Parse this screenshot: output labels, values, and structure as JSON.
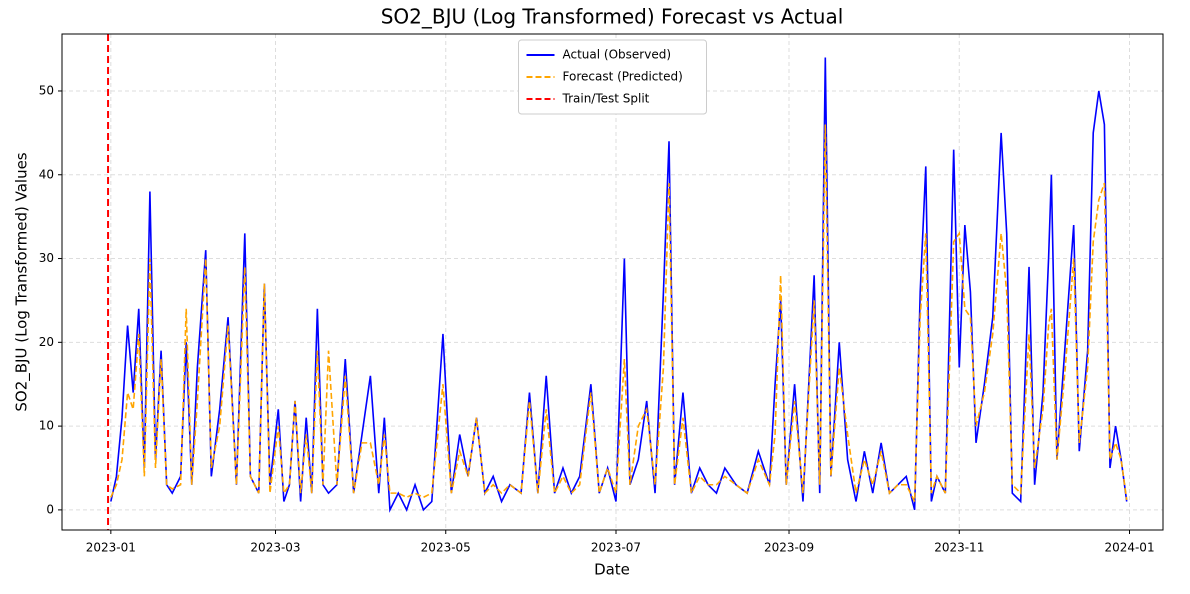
{
  "chart_data": {
    "type": "line",
    "title": "SO2_BJU (Log Transformed) Forecast vs Actual",
    "xlabel": "Date",
    "ylabel": "SO2_BJU (Log Transformed) Values",
    "x": [
      0,
      2,
      4,
      6,
      8,
      10,
      12,
      14,
      16,
      18,
      20,
      22,
      25,
      27,
      29,
      31,
      34,
      36,
      39,
      42,
      45,
      48,
      50,
      53,
      55,
      57,
      60,
      62,
      64,
      66,
      68,
      70,
      72,
      74,
      76,
      78,
      81,
      84,
      87,
      90,
      93,
      96,
      98,
      100,
      103,
      106,
      109,
      112,
      115,
      119,
      122,
      125,
      128,
      131,
      134,
      137,
      140,
      143,
      147,
      150,
      153,
      156,
      159,
      162,
      165,
      168,
      172,
      175,
      178,
      181,
      184,
      186,
      189,
      192,
      195,
      198,
      200,
      202,
      205,
      208,
      211,
      214,
      217,
      220,
      224,
      228,
      232,
      236,
      238,
      240,
      242,
      245,
      248,
      252,
      254,
      256,
      258,
      261,
      264,
      267,
      270,
      273,
      276,
      279,
      282,
      285,
      288,
      290,
      292,
      294,
      296,
      299,
      302,
      304,
      306,
      308,
      310,
      313,
      316,
      319,
      321,
      323,
      326,
      329,
      331,
      334,
      336,
      337,
      339,
      342,
      345,
      347,
      350,
      352,
      354,
      356,
      358,
      360,
      362,
      364
    ],
    "series": [
      {
        "name": "Actual (Observed)",
        "color": "#0000ff",
        "dash": false,
        "values": [
          1,
          4,
          11,
          22,
          14,
          24,
          5,
          38,
          6,
          19,
          3,
          2,
          4,
          20,
          3,
          17,
          31,
          4,
          12,
          23,
          3,
          33,
          4,
          2,
          27,
          3,
          12,
          1,
          3,
          13,
          1,
          11,
          2,
          24,
          3,
          2,
          3,
          18,
          2,
          9,
          16,
          2,
          11,
          0,
          2,
          0,
          3,
          0,
          1,
          21,
          2,
          9,
          4,
          11,
          2,
          4,
          1,
          3,
          2,
          14,
          2,
          16,
          2,
          5,
          2,
          4,
          15,
          2,
          5,
          1,
          30,
          3,
          6,
          13,
          2,
          26,
          44,
          3,
          14,
          2,
          5,
          3,
          2,
          5,
          3,
          2,
          7,
          3,
          15,
          25,
          3,
          15,
          1,
          28,
          2,
          54,
          4,
          20,
          6,
          1,
          7,
          2,
          8,
          2,
          3,
          4,
          0,
          26,
          41,
          1,
          4,
          2,
          43,
          17,
          34,
          26,
          8,
          15,
          23,
          45,
          33,
          2,
          1,
          29,
          3,
          14,
          30,
          40,
          6,
          20,
          34,
          7,
          19,
          45,
          50,
          46,
          5,
          10,
          6,
          1
        ]
      },
      {
        "name": "Forecast (Predicted)",
        "color": "#ffa500",
        "dash": true,
        "values": [
          1.5,
          3,
          6,
          14,
          12,
          21,
          4,
          30,
          5,
          18,
          3,
          2.5,
          3,
          24,
          3,
          13,
          30,
          5,
          10,
          22,
          3,
          29,
          4,
          2,
          27,
          2,
          10,
          2,
          3,
          13,
          2,
          9,
          2,
          19,
          3,
          19,
          3,
          16,
          2,
          8,
          8,
          3,
          9,
          2,
          2,
          1.5,
          2,
          1.5,
          2,
          15,
          2,
          7,
          4,
          11,
          2,
          3,
          2,
          3,
          2,
          13,
          2,
          12,
          2,
          4,
          2,
          3,
          14,
          2,
          5,
          2,
          18,
          3,
          10,
          12,
          3,
          17,
          39,
          3,
          11,
          2,
          4,
          3,
          3,
          4,
          3,
          2,
          6,
          3,
          9,
          28,
          3,
          13,
          2,
          25,
          3,
          46,
          4,
          17,
          9,
          2,
          6,
          3,
          7,
          2,
          3,
          3,
          1,
          23,
          33,
          2,
          4,
          2,
          32,
          33,
          24,
          23,
          10,
          14,
          21,
          33,
          26,
          3,
          2,
          21,
          5,
          12,
          22,
          24,
          6,
          17,
          30,
          8,
          17,
          32,
          37,
          39,
          6,
          8,
          6,
          1.2
        ]
      }
    ],
    "vlines": [
      {
        "name": "Train/Test Split",
        "x": -1,
        "color": "#ff0000"
      }
    ],
    "xlim": [
      -17.5,
      377
    ],
    "xticks": [
      {
        "value": 0,
        "label": "2023-01"
      },
      {
        "value": 59,
        "label": "2023-03"
      },
      {
        "value": 120,
        "label": "2023-05"
      },
      {
        "value": 181,
        "label": "2023-07"
      },
      {
        "value": 243,
        "label": "2023-09"
      },
      {
        "value": 304,
        "label": "2023-11"
      },
      {
        "value": 365,
        "label": "2024-01"
      }
    ],
    "ylim": [
      -2.4,
      56.8
    ],
    "yticks": [
      0,
      10,
      20,
      30,
      40,
      50
    ],
    "grid": true,
    "legend": "upper center"
  }
}
